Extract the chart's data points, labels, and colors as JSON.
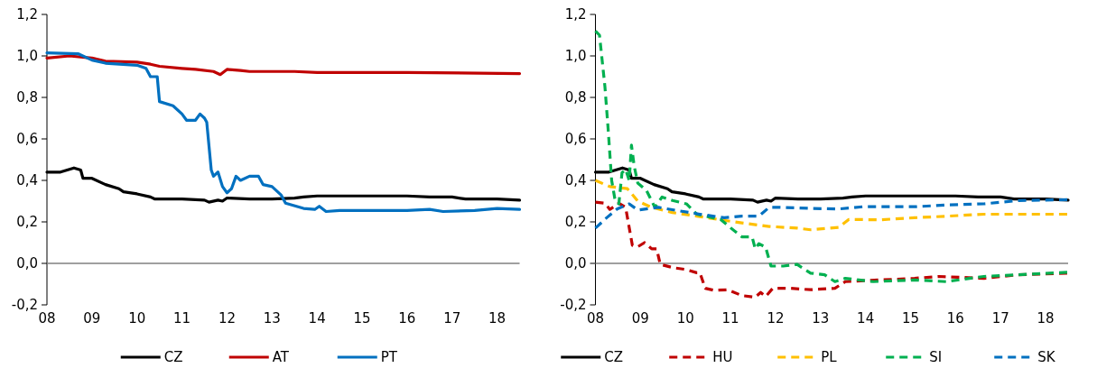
{
  "chart_data": [
    {
      "type": "line",
      "xlim": [
        2008,
        2018.5
      ],
      "xticks": [
        {
          "value": 2008,
          "label": "08"
        },
        {
          "value": 2009,
          "label": "09"
        },
        {
          "value": 2010,
          "label": "10"
        },
        {
          "value": 2011,
          "label": "11"
        },
        {
          "value": 2012,
          "label": "12"
        },
        {
          "value": 2013,
          "label": "13"
        },
        {
          "value": 2014,
          "label": "14"
        },
        {
          "value": 2015,
          "label": "15"
        },
        {
          "value": 2016,
          "label": "16"
        },
        {
          "value": 2017,
          "label": "17"
        },
        {
          "value": 2018,
          "label": "18"
        }
      ],
      "ylim": [
        -0.2,
        1.2
      ],
      "yticks": [
        {
          "value": -0.2,
          "label": "-0,2"
        },
        {
          "value": 0,
          "label": "0,0"
        },
        {
          "value": 0.2,
          "label": "0,2"
        },
        {
          "value": 0.4,
          "label": "0,4"
        },
        {
          "value": 0.6,
          "label": "0,6"
        },
        {
          "value": 0.8,
          "label": "0,8"
        },
        {
          "value": 1,
          "label": "1,0"
        },
        {
          "value": 1.2,
          "label": "1,2"
        }
      ],
      "legend": "bottom",
      "marker": "none",
      "ref_lines": [
        {
          "axis": "y",
          "value": 0,
          "color": "#7f7f7f"
        }
      ],
      "series": [
        {
          "name": "CZ",
          "color": "#000000",
          "line_style": "solid",
          "x": [
            2008,
            2008.3,
            2008.6,
            2008.75,
            2008.8,
            2009,
            2009.3,
            2009.6,
            2009.7,
            2010,
            2010.3,
            2010.4,
            2011,
            2011.5,
            2011.6,
            2011.8,
            2011.9,
            2012,
            2012.5,
            2013,
            2013.5,
            2013.7,
            2014,
            2015,
            2016,
            2016.5,
            2017,
            2017.3,
            2018,
            2018.5
          ],
          "values": [
            0.44,
            0.44,
            0.46,
            0.45,
            0.41,
            0.41,
            0.38,
            0.36,
            0.345,
            0.335,
            0.32,
            0.31,
            0.31,
            0.305,
            0.295,
            0.305,
            0.3,
            0.315,
            0.31,
            0.31,
            0.315,
            0.32,
            0.325,
            0.325,
            0.325,
            0.32,
            0.32,
            0.31,
            0.31,
            0.305
          ]
        },
        {
          "name": "AT",
          "color": "#c00000",
          "line_style": "solid",
          "x": [
            2008,
            2008.5,
            2009,
            2009.3,
            2010,
            2010.3,
            2010.5,
            2011,
            2011.3,
            2011.7,
            2011.85,
            2012,
            2012.3,
            2012.5,
            2013,
            2013.5,
            2014,
            2016,
            2018.5
          ],
          "values": [
            0.99,
            1.0,
            0.99,
            0.975,
            0.97,
            0.96,
            0.95,
            0.94,
            0.935,
            0.925,
            0.91,
            0.935,
            0.93,
            0.925,
            0.925,
            0.925,
            0.92,
            0.92,
            0.915
          ]
        },
        {
          "name": "PT",
          "color": "#0070c0",
          "line_style": "solid",
          "x": [
            2008,
            2008.7,
            2009,
            2009.3,
            2010,
            2010.2,
            2010.3,
            2010.45,
            2010.5,
            2010.8,
            2011,
            2011.1,
            2011.3,
            2011.4,
            2011.5,
            2011.55,
            2011.65,
            2011.7,
            2011.8,
            2011.9,
            2012,
            2012.1,
            2012.2,
            2012.3,
            2012.5,
            2012.7,
            2012.8,
            2013,
            2013.2,
            2013.3,
            2013.7,
            2013.95,
            2014.05,
            2014.2,
            2014.5,
            2015,
            2016,
            2016.5,
            2016.8,
            2017.5,
            2018,
            2018.5
          ],
          "values": [
            1.015,
            1.01,
            0.98,
            0.965,
            0.955,
            0.94,
            0.9,
            0.9,
            0.78,
            0.76,
            0.72,
            0.69,
            0.69,
            0.72,
            0.7,
            0.68,
            0.45,
            0.42,
            0.44,
            0.37,
            0.34,
            0.36,
            0.42,
            0.4,
            0.42,
            0.42,
            0.38,
            0.37,
            0.33,
            0.29,
            0.265,
            0.26,
            0.275,
            0.25,
            0.255,
            0.255,
            0.255,
            0.26,
            0.25,
            0.255,
            0.265,
            0.26
          ]
        }
      ]
    },
    {
      "type": "line",
      "xlim": [
        2008,
        2018.5
      ],
      "xticks": [
        {
          "value": 2008,
          "label": "08"
        },
        {
          "value": 2009,
          "label": "09"
        },
        {
          "value": 2010,
          "label": "10"
        },
        {
          "value": 2011,
          "label": "11"
        },
        {
          "value": 2012,
          "label": "12"
        },
        {
          "value": 2013,
          "label": "13"
        },
        {
          "value": 2014,
          "label": "14"
        },
        {
          "value": 2015,
          "label": "15"
        },
        {
          "value": 2016,
          "label": "16"
        },
        {
          "value": 2017,
          "label": "17"
        },
        {
          "value": 2018,
          "label": "18"
        }
      ],
      "ylim": [
        -0.2,
        1.2
      ],
      "yticks": [
        {
          "value": -0.2,
          "label": "-0,2"
        },
        {
          "value": 0,
          "label": "0,0"
        },
        {
          "value": 0.2,
          "label": "0,2"
        },
        {
          "value": 0.4,
          "label": "0,4"
        },
        {
          "value": 0.6,
          "label": "0,6"
        },
        {
          "value": 0.8,
          "label": "0,8"
        },
        {
          "value": 1,
          "label": "1,0"
        },
        {
          "value": 1.2,
          "label": "1,2"
        }
      ],
      "legend": "bottom",
      "marker": "none",
      "ref_lines": [
        {
          "axis": "y",
          "value": 0,
          "color": "#7f7f7f"
        }
      ],
      "series": [
        {
          "name": "CZ",
          "color": "#000000",
          "line_style": "solid",
          "x": [
            2008,
            2008.3,
            2008.6,
            2008.75,
            2008.8,
            2009,
            2009.3,
            2009.6,
            2009.7,
            2010,
            2010.3,
            2010.4,
            2011,
            2011.5,
            2011.6,
            2011.8,
            2011.9,
            2012,
            2012.5,
            2013,
            2013.5,
            2013.7,
            2014,
            2015,
            2016,
            2016.5,
            2017,
            2017.3,
            2018,
            2018.5
          ],
          "values": [
            0.44,
            0.44,
            0.46,
            0.45,
            0.41,
            0.41,
            0.38,
            0.36,
            0.345,
            0.335,
            0.32,
            0.31,
            0.31,
            0.305,
            0.295,
            0.305,
            0.3,
            0.315,
            0.31,
            0.31,
            0.315,
            0.32,
            0.325,
            0.325,
            0.325,
            0.32,
            0.32,
            0.31,
            0.31,
            0.305
          ]
        },
        {
          "name": "HU",
          "color": "#c00000",
          "line_style": "dashed",
          "x": [
            2008,
            2008.21,
            2008.32,
            2008.52,
            2008.67,
            2008.82,
            2008.94,
            2009.09,
            2009.25,
            2009.36,
            2009.44,
            2009.71,
            2010.02,
            2010.25,
            2010.32,
            2010.44,
            2010.63,
            2010.94,
            2011.25,
            2011.55,
            2011.67,
            2011.78,
            2011.94,
            2012.32,
            2012.78,
            2013.32,
            2013.55,
            2014.02,
            2015.09,
            2015.63,
            2016.63,
            2017.4,
            2018.48
          ],
          "values": [
            0.295,
            0.29,
            0.26,
            0.29,
            0.27,
            0.087,
            0.08,
            0.1,
            0.07,
            0.07,
            -0.005,
            -0.02,
            -0.03,
            -0.045,
            -0.045,
            -0.12,
            -0.13,
            -0.127,
            -0.155,
            -0.163,
            -0.14,
            -0.16,
            -0.12,
            -0.12,
            -0.127,
            -0.12,
            -0.088,
            -0.083,
            -0.072,
            -0.063,
            -0.072,
            -0.055,
            -0.047
          ]
        },
        {
          "name": "PL",
          "color": "#ffc000",
          "line_style": "dashed",
          "x": [
            2008,
            2008.32,
            2008.71,
            2008.94,
            2009.25,
            2009.71,
            2010.25,
            2010.78,
            2011.25,
            2011.86,
            2012.48,
            2012.78,
            2013.4,
            2013.63,
            2014.32,
            2015.09,
            2015.86,
            2016.63,
            2018.48
          ],
          "values": [
            0.4,
            0.37,
            0.36,
            0.3,
            0.27,
            0.245,
            0.228,
            0.21,
            0.195,
            0.178,
            0.17,
            0.162,
            0.173,
            0.212,
            0.21,
            0.22,
            0.228,
            0.237,
            0.237
          ]
        },
        {
          "name": "SI",
          "color": "#00b050",
          "line_style": "dashed",
          "x": [
            2008,
            2008.09,
            2008.21,
            2008.28,
            2008.36,
            2008.44,
            2008.52,
            2008.59,
            2008.67,
            2008.75,
            2008.8,
            2008.86,
            2008.94,
            2009.13,
            2009.32,
            2009.48,
            2009.71,
            2010.02,
            2010.25,
            2010.78,
            2011.01,
            2011.25,
            2011.48,
            2011.55,
            2011.63,
            2011.78,
            2011.9,
            2011.94,
            2012.17,
            2012.48,
            2012.78,
            2013.09,
            2013.32,
            2013.55,
            2014.17,
            2015.09,
            2015.79,
            2016.63,
            2018.48
          ],
          "values": [
            1.12,
            1.1,
            0.853,
            0.653,
            0.4,
            0.3,
            0.287,
            0.437,
            0.453,
            0.4,
            0.57,
            0.47,
            0.387,
            0.353,
            0.27,
            0.32,
            0.303,
            0.287,
            0.237,
            0.212,
            0.17,
            0.128,
            0.128,
            0.07,
            0.095,
            0.078,
            -0.013,
            -0.013,
            -0.013,
            -0.005,
            -0.047,
            -0.055,
            -0.088,
            -0.072,
            -0.088,
            -0.08,
            -0.088,
            -0.063,
            -0.043
          ]
        },
        {
          "name": "SK",
          "color": "#0070c0",
          "line_style": "dashed",
          "x": [
            2008,
            2008.25,
            2008.48,
            2008.75,
            2008.94,
            2009.4,
            2009.86,
            2010.32,
            2010.86,
            2011.25,
            2011.63,
            2011.86,
            2012.09,
            2012.78,
            2013.4,
            2013.94,
            2015.09,
            2015.86,
            2016.63,
            2017.4,
            2018.48
          ],
          "values": [
            0.17,
            0.22,
            0.262,
            0.287,
            0.257,
            0.27,
            0.253,
            0.237,
            0.22,
            0.228,
            0.228,
            0.27,
            0.27,
            0.265,
            0.262,
            0.273,
            0.273,
            0.282,
            0.287,
            0.303,
            0.307
          ]
        }
      ]
    }
  ]
}
